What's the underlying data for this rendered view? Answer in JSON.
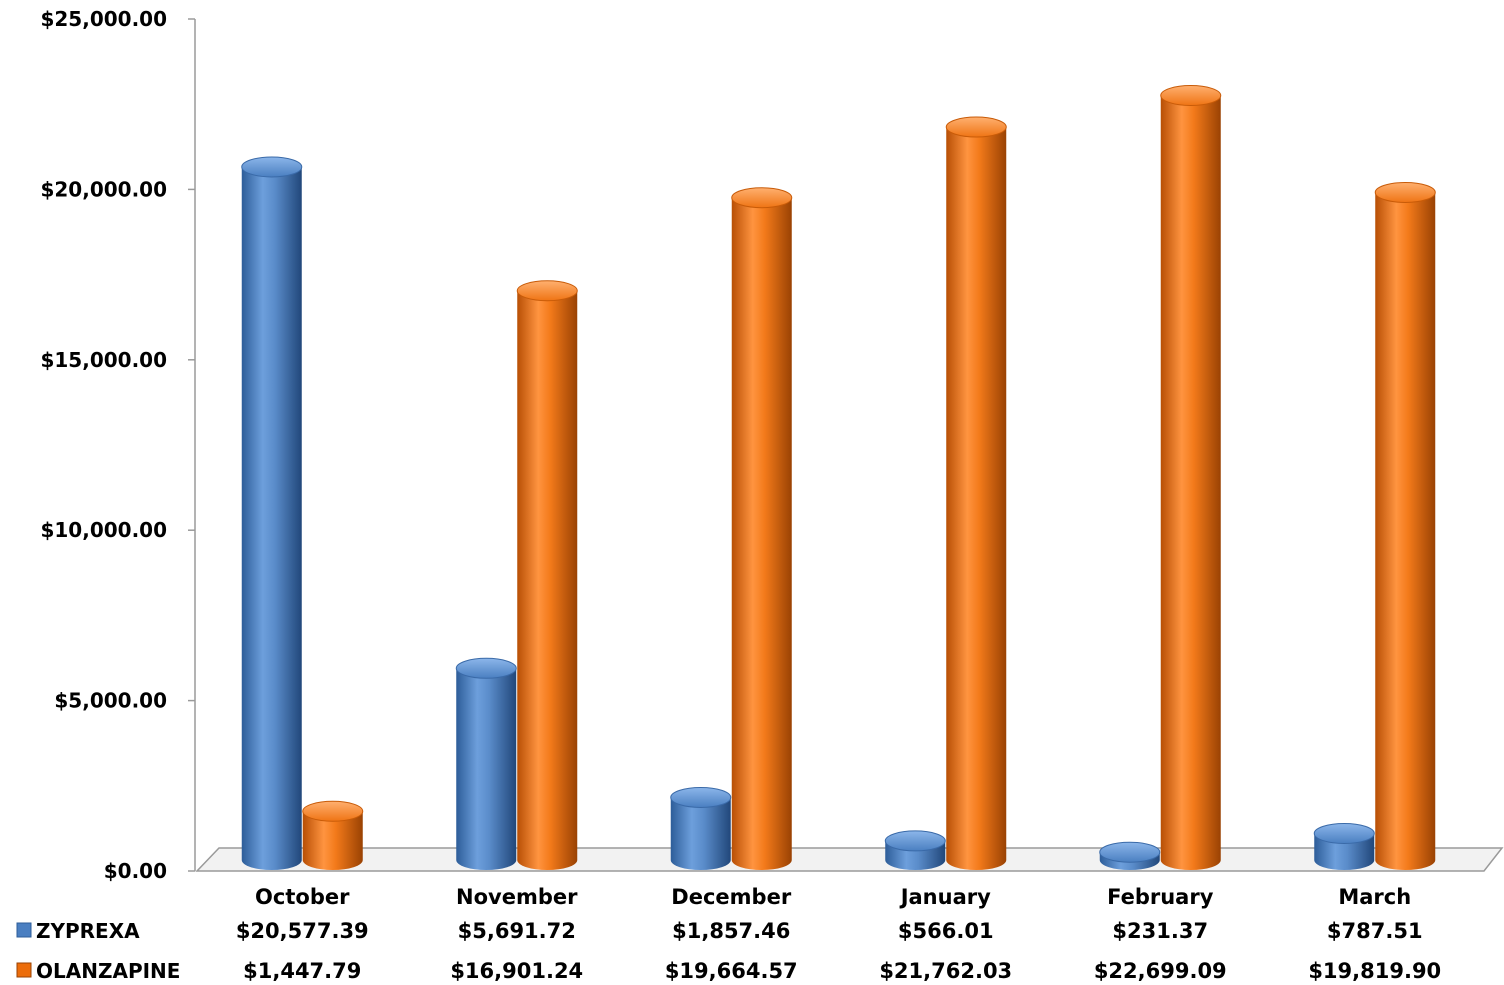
{
  "chart_data": {
    "type": "bar",
    "categories": [
      "October",
      "November",
      "December",
      "January",
      "February",
      "March"
    ],
    "series": [
      {
        "name": "ZYPREXA",
        "color": "#4a7fc1",
        "values": [
          20577.39,
          5691.72,
          1857.46,
          566.01,
          231.37,
          787.51
        ],
        "labels": [
          "$20,577.39",
          "$5,691.72",
          "$1,857.46",
          "$566.01",
          "$231.37",
          "$787.51"
        ]
      },
      {
        "name": "OLANZAPINE",
        "color": "#ec6d0b",
        "values": [
          1447.79,
          16901.24,
          19664.57,
          21762.03,
          22699.09,
          19819.9
        ],
        "labels": [
          "$1,447.79",
          "$16,901.24",
          "$19,664.57",
          "$21,762.03",
          "$22,699.09",
          "$19,819.90"
        ]
      }
    ],
    "y_ticks": [
      "$0.00",
      "$5,000.00",
      "$10,000.00",
      "$15,000.00",
      "$20,000.00",
      "$25,000.00"
    ],
    "ylim": [
      0,
      25000
    ],
    "style": "3d-cylinder",
    "legend": "data-table-below",
    "grid": false
  }
}
